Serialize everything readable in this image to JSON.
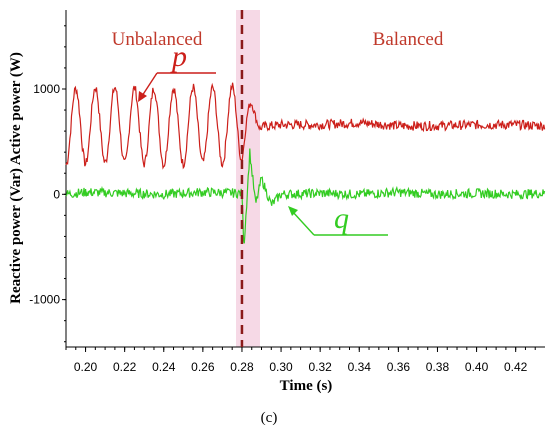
{
  "chart_data": {
    "type": "line",
    "xlabel": "Time (s)",
    "ylabel": "Reactive power (Var) Active power (W)",
    "xlim": [
      0.19,
      0.435
    ],
    "ylim": [
      -1450,
      1750
    ],
    "x_ticks": [
      0.2,
      0.22,
      0.24,
      0.26,
      0.28,
      0.3,
      0.32,
      0.34,
      0.36,
      0.38,
      0.4,
      0.42
    ],
    "x_tick_labels": [
      "0.20",
      "0.22",
      "0.24",
      "0.26",
      "0.28",
      "0.30",
      "0.32",
      "0.34",
      "0.36",
      "0.38",
      "0.40",
      "0.42"
    ],
    "y_ticks": [
      -1000,
      0,
      1000
    ],
    "y_tick_labels": [
      "-1000",
      "0",
      "1000"
    ],
    "event_time": 0.28,
    "regions": [
      {
        "label": "Unbalanced",
        "x": [
          0.19,
          0.28
        ]
      },
      {
        "label": "Balanced",
        "x": [
          0.28,
          0.435
        ]
      }
    ],
    "series": [
      {
        "name": "p",
        "color": "#cc1f1a",
        "keypoints": {
          "x": [
            0.19,
            0.2,
            0.21,
            0.22,
            0.23,
            0.24,
            0.25,
            0.26,
            0.27,
            0.28,
            0.285,
            0.29,
            0.3,
            0.32,
            0.34,
            0.36,
            0.38,
            0.4,
            0.42,
            0.435
          ],
          "y": [
            640,
            650,
            660,
            650,
            650,
            640,
            650,
            660,
            650,
            680,
            760,
            640,
            660,
            660,
            680,
            650,
            650,
            660,
            660,
            650
          ]
        },
        "oscillation_before_event": {
          "amplitude": 360,
          "period": 0.01
        }
      },
      {
        "name": "q",
        "color": "#33cc22",
        "keypoints": {
          "x": [
            0.19,
            0.2,
            0.22,
            0.24,
            0.26,
            0.28,
            0.281,
            0.284,
            0.287,
            0.29,
            0.295,
            0.3,
            0.32,
            0.34,
            0.36,
            0.38,
            0.4,
            0.42,
            0.435
          ],
          "y": [
            0,
            20,
            10,
            0,
            20,
            10,
            -500,
            400,
            -100,
            150,
            -100,
            0,
            10,
            0,
            20,
            0,
            10,
            0,
            10
          ]
        }
      }
    ],
    "annotations": [
      {
        "text": "p",
        "color": "#cc1f1a"
      },
      {
        "text": "q",
        "color": "#33cc22"
      }
    ]
  },
  "caption": "(c)",
  "colors": {
    "active_power": "#cc1f1a",
    "reactive_power": "#33cc22",
    "event_line": "#8b1a1a",
    "highlight": "#f6d9e6"
  }
}
